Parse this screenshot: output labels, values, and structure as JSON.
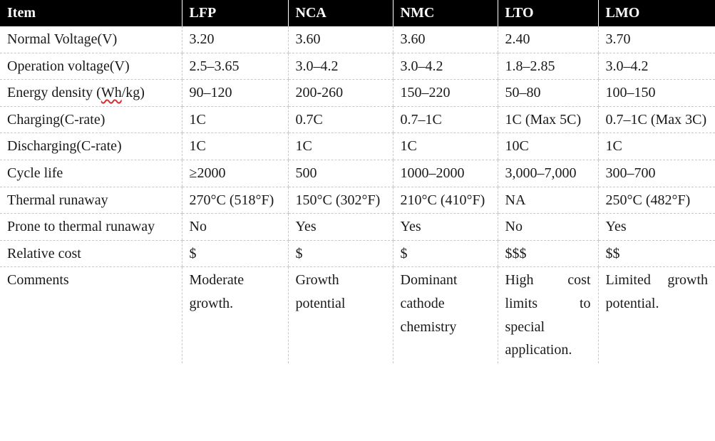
{
  "header": [
    "Item",
    "LFP",
    "NCA",
    "NMC",
    "LTO",
    "LMO"
  ],
  "rows": [
    {
      "label": "Normal Voltage(V)",
      "cells": [
        "3.20",
        "3.60",
        "3.60",
        "2.40",
        "3.70"
      ]
    },
    {
      "label": "Operation voltage(V)",
      "cells": [
        "2.5–3.65",
        "3.0–4.2",
        "3.0–4.2",
        "1.8–2.85",
        "3.0–4.2"
      ]
    },
    {
      "label_pre": "Energy density (",
      "label_wh": "Wh",
      "label_post": "/kg)",
      "cells": [
        "90–120",
        "200-260",
        "150–220",
        "50–80",
        "100–150"
      ]
    },
    {
      "label": "Charging(C-rate)",
      "cells": [
        "1C",
        "0.7C",
        "0.7–1C",
        "1C (Max 5C)",
        "0.7–1C (Max 3C)"
      ]
    },
    {
      "label": "Discharging(C-rate)",
      "cells": [
        "1C",
        "1C",
        "1C",
        "10C",
        "1C"
      ]
    },
    {
      "label": "Cycle life",
      "cells": [
        "≥2000",
        "500",
        "1000–2000",
        "3,000–7,000",
        "300–700"
      ]
    },
    {
      "label": "Thermal runaway",
      "cells": [
        "270°C (518°F)",
        "150°C (302°F)",
        "210°C (410°F)",
        "NA",
        "250°C (482°F)"
      ]
    },
    {
      "label": "Prone to thermal runaway",
      "cells": [
        "No",
        "Yes",
        "Yes",
        "No",
        "Yes"
      ]
    },
    {
      "label": "Relative cost",
      "cells": [
        "$",
        "$",
        "$",
        "$$$",
        "$$"
      ]
    },
    {
      "label": "Comments",
      "cells": [
        "Moderate growth.",
        "Growth potential",
        "Dominant cathode chemistry",
        "High cost limits to special application.",
        "Limited growth potential."
      ]
    }
  ]
}
